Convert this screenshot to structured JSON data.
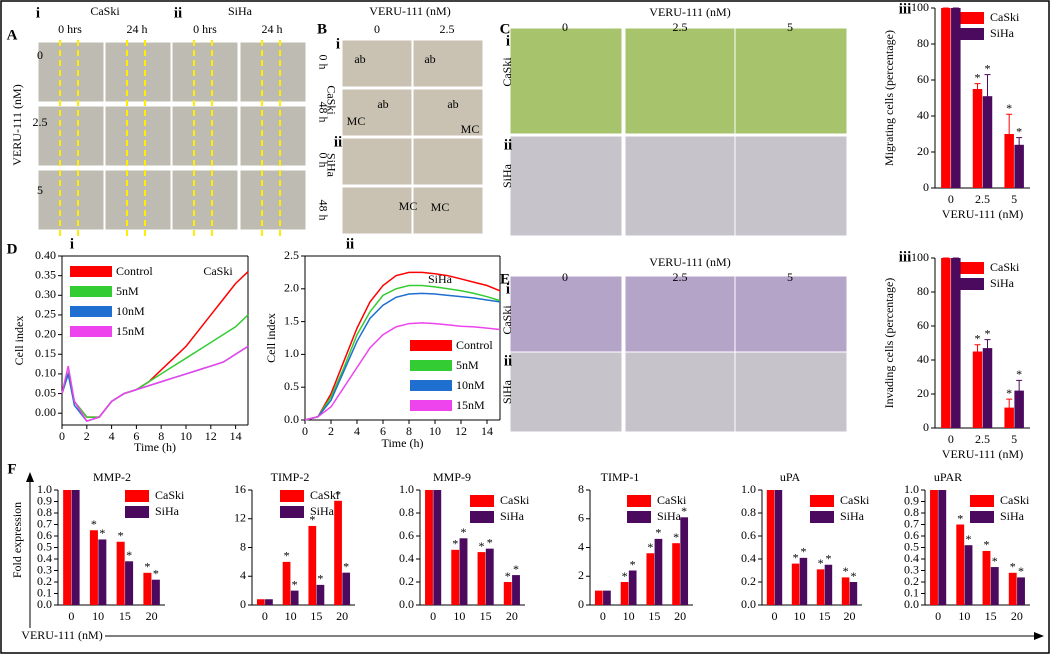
{
  "panel_A": {
    "label": "A",
    "sub": [
      "i",
      "ii"
    ],
    "lines": [
      "CaSki",
      "SiHa"
    ],
    "times": [
      "0 hrs",
      "24 h",
      "0 hrs",
      "24 h"
    ],
    "axis": "VERU-111  (nM)",
    "doses": [
      "0",
      "2.5",
      "5"
    ]
  },
  "panel_B": {
    "label": "B",
    "header": "VERU-111 (nM)",
    "doses": [
      "0",
      "2.5"
    ],
    "sub": [
      "i",
      "ii"
    ],
    "lines": [
      "CaSki",
      "SiHa"
    ],
    "times": [
      "0 h",
      "48 h",
      "0 h",
      "48 h"
    ],
    "marks": [
      "ab",
      "ab",
      "ab",
      "ab",
      "MC",
      "MC",
      "MC",
      "MC"
    ]
  },
  "panel_C": {
    "label": "C",
    "header": "VERU-111  (nM)",
    "doses": [
      "0",
      "2.5",
      "5"
    ],
    "sub": [
      "i",
      "ii"
    ],
    "lines": [
      "CaSki",
      "SiHa"
    ]
  },
  "panel_D": {
    "label": "D"
  },
  "panel_E": {
    "label": "E",
    "header": "VERU-111  (nM)",
    "doses": [
      "0",
      "2.5",
      "5"
    ],
    "sub": [
      "i",
      "ii"
    ],
    "lines": [
      "CaSki",
      "SiHa"
    ]
  },
  "panel_F": {
    "label": "F",
    "axis": "VERU-111  (nM)",
    "ylabel": "Fold expression"
  },
  "chart_data": [
    {
      "type": "bar",
      "panel": "iii",
      "ylabel": "Migrating cells (percentage)",
      "xlabel": "VERU-111  (nM)",
      "categories": [
        "0",
        "2.5",
        "5"
      ],
      "ylim": [
        0,
        100
      ],
      "yticks": [
        0,
        20,
        40,
        60,
        80,
        100
      ],
      "legend": "upper right",
      "series": [
        {
          "name": "CaSki",
          "color": "#ff0000",
          "values": [
            100,
            55,
            30
          ],
          "errors": [
            0,
            3,
            11
          ],
          "markers": [
            null,
            "*",
            "*"
          ]
        },
        {
          "name": "SiHa",
          "color": "#4b0a5e",
          "values": [
            100,
            51,
            24
          ],
          "errors": [
            0,
            12,
            4
          ],
          "markers": [
            null,
            "*",
            "*"
          ]
        }
      ]
    },
    {
      "type": "bar",
      "panel": "iii",
      "ylabel": "Invading cells (percentage)",
      "xlabel": "VERU-111  (nM)",
      "categories": [
        "0",
        "2.5",
        "5"
      ],
      "ylim": [
        0,
        100
      ],
      "yticks": [
        0,
        20,
        40,
        60,
        80,
        100
      ],
      "legend": "upper right",
      "series": [
        {
          "name": "CaSki",
          "color": "#ff0000",
          "values": [
            100,
            45,
            12
          ],
          "errors": [
            0,
            4,
            5
          ],
          "markers": [
            null,
            "*",
            "*"
          ]
        },
        {
          "name": "SiHa",
          "color": "#4b0a5e",
          "values": [
            100,
            47,
            22
          ],
          "errors": [
            0,
            5,
            6
          ],
          "markers": [
            null,
            "*",
            "*"
          ]
        }
      ]
    },
    {
      "type": "line",
      "panel": "i",
      "title": "CaSki",
      "ylabel": "Cell index",
      "xlabel": "Time  (h)",
      "legend": "upper left",
      "x": [
        0,
        0.5,
        1,
        2,
        3,
        4,
        5,
        6,
        7,
        8,
        9,
        10,
        11,
        12,
        13,
        14,
        15
      ],
      "xlim": [
        0,
        15
      ],
      "xticks": [
        0,
        2,
        4,
        6,
        8,
        10,
        12,
        14
      ],
      "ylim": [
        -0.03,
        0.4
      ],
      "yticks": [
        {
          "value": 0,
          "label": "0.00"
        },
        0.05,
        {
          "value": 0.1,
          "label": "0.10"
        },
        0.15,
        {
          "value": 0.2,
          "label": "0.20"
        },
        0.25,
        {
          "value": 0.3,
          "label": "0.30"
        },
        0.35,
        {
          "value": 0.4,
          "label": "0.40"
        }
      ],
      "series": [
        {
          "name": "Control",
          "color": "#ff0000",
          "values": [
            0.05,
            0.1,
            0.03,
            -0.01,
            -0.01,
            0.03,
            0.05,
            0.06,
            0.08,
            0.11,
            0.14,
            0.17,
            0.21,
            0.25,
            0.29,
            0.33,
            0.36
          ]
        },
        {
          "name": "5nM",
          "color": "#33cc33",
          "values": [
            0.05,
            0.1,
            0.03,
            -0.01,
            -0.01,
            0.03,
            0.05,
            0.06,
            0.08,
            0.1,
            0.12,
            0.14,
            0.16,
            0.18,
            0.2,
            0.22,
            0.25
          ]
        },
        {
          "name": "10nM",
          "color": "#1e6fd0",
          "values": [
            0.05,
            0.1,
            0.02,
            -0.02,
            -0.01,
            0.03,
            0.05,
            0.06,
            0.07,
            0.08,
            0.09,
            0.1,
            0.11,
            0.12,
            0.13,
            0.15,
            0.17
          ]
        },
        {
          "name": "15nM",
          "color": "#ee44ee",
          "values": [
            0.05,
            0.12,
            0.03,
            -0.02,
            -0.01,
            0.03,
            0.05,
            0.06,
            0.07,
            0.08,
            0.09,
            0.1,
            0.11,
            0.12,
            0.13,
            0.15,
            0.17
          ]
        }
      ]
    },
    {
      "type": "line",
      "panel": "ii",
      "title": "SiHa",
      "ylabel": "Cell index",
      "xlabel": "Time  (h)",
      "legend": "lower right",
      "x": [
        0,
        1,
        2,
        3,
        4,
        5,
        6,
        7,
        8,
        9,
        10,
        11,
        12,
        13,
        14,
        15
      ],
      "xlim": [
        0,
        15
      ],
      "xticks": [
        0,
        2,
        4,
        6,
        8,
        10,
        12,
        14
      ],
      "ylim": [
        0,
        2.5
      ],
      "yticks": [
        {
          "value": 0,
          "label": "0.0"
        },
        0.5,
        {
          "value": 1,
          "label": "1.0"
        },
        1.5,
        {
          "value": 2,
          "label": "2.0"
        },
        2.5
      ],
      "series": [
        {
          "name": "Control",
          "color": "#ff0000",
          "values": [
            0,
            0.05,
            0.4,
            0.9,
            1.4,
            1.8,
            2.05,
            2.2,
            2.25,
            2.25,
            2.23,
            2.2,
            2.15,
            2.1,
            2.05,
            1.97
          ]
        },
        {
          "name": "5nM",
          "color": "#33cc33",
          "values": [
            0,
            0.05,
            0.35,
            0.8,
            1.3,
            1.65,
            1.9,
            2.0,
            2.05,
            2.05,
            2.03,
            2.0,
            1.97,
            1.93,
            1.88,
            1.82
          ]
        },
        {
          "name": "10nM",
          "color": "#1e6fd0",
          "values": [
            0,
            0.05,
            0.3,
            0.75,
            1.2,
            1.55,
            1.75,
            1.87,
            1.92,
            1.93,
            1.92,
            1.9,
            1.88,
            1.86,
            1.83,
            1.8
          ]
        },
        {
          "name": "15nM",
          "color": "#ee44ee",
          "values": [
            0,
            0.05,
            0.2,
            0.5,
            0.8,
            1.1,
            1.3,
            1.42,
            1.47,
            1.48,
            1.47,
            1.45,
            1.43,
            1.42,
            1.4,
            1.38
          ]
        }
      ]
    },
    {
      "type": "bar",
      "title": "MMP-2",
      "categories": [
        "0",
        "10",
        "15",
        "20"
      ],
      "ylim": [
        0,
        1
      ],
      "legend": "upper right",
      "yticks": [
        {
          "value": 0,
          "label": "0.0"
        },
        0.1,
        0.2,
        0.3,
        0.4,
        0.5,
        0.6,
        0.7,
        0.8,
        0.9,
        {
          "value": 1,
          "label": "1.0"
        }
      ],
      "series": [
        {
          "name": "CaSki",
          "color": "#ff0000",
          "values": [
            1,
            0.65,
            0.55,
            0.28
          ],
          "markers": [
            null,
            "*",
            "*",
            "*"
          ]
        },
        {
          "name": "SiHa",
          "color": "#4b0a5e",
          "values": [
            1,
            0.57,
            0.38,
            0.22
          ],
          "markers": [
            null,
            "*",
            "*",
            "*"
          ]
        }
      ]
    },
    {
      "type": "bar",
      "title": "TIMP-2",
      "categories": [
        "0",
        "10",
        "15",
        "20"
      ],
      "ylim": [
        0,
        16
      ],
      "yticks": [
        0,
        4,
        8,
        12,
        16
      ],
      "legend": "upper right",
      "series": [
        {
          "name": "CaSki",
          "color": "#ff0000",
          "values": [
            0.8,
            6,
            11,
            14.5
          ],
          "markers": [
            null,
            "*",
            "*",
            "*"
          ]
        },
        {
          "name": "SiHa",
          "color": "#4b0a5e",
          "values": [
            0.8,
            2,
            2.8,
            4.5
          ],
          "markers": [
            null,
            "*",
            "*",
            "*"
          ]
        }
      ]
    },
    {
      "type": "bar",
      "title": "MMP-9",
      "categories": [
        "0",
        "10",
        "15",
        "20"
      ],
      "ylim": [
        0,
        1
      ],
      "legend": "upper right",
      "yticks": [
        {
          "value": 0,
          "label": "0.0"
        },
        0.2,
        0.4,
        0.6,
        0.8,
        {
          "value": 1,
          "label": "1.0"
        }
      ],
      "series": [
        {
          "name": "CaSki",
          "color": "#ff0000",
          "values": [
            1,
            0.48,
            0.46,
            0.2
          ],
          "markers": [
            null,
            "*",
            "*",
            "*"
          ]
        },
        {
          "name": "SiHa",
          "color": "#4b0a5e",
          "values": [
            1,
            0.58,
            0.49,
            0.26
          ],
          "markers": [
            null,
            "*",
            "*",
            "*"
          ]
        }
      ]
    },
    {
      "type": "bar",
      "title": "TIMP-1",
      "categories": [
        "0",
        "10",
        "15",
        "20"
      ],
      "ylim": [
        0,
        8
      ],
      "yticks": [
        0,
        2,
        4,
        6,
        8
      ],
      "legend": "upper right",
      "series": [
        {
          "name": "CaSki",
          "color": "#ff0000",
          "values": [
            1,
            1.6,
            3.6,
            4.3
          ],
          "markers": [
            null,
            "*",
            "*",
            "*"
          ]
        },
        {
          "name": "SiHa",
          "color": "#4b0a5e",
          "values": [
            1,
            2.4,
            4.6,
            6.1
          ],
          "markers": [
            null,
            "*",
            "*",
            "*"
          ]
        }
      ]
    },
    {
      "type": "bar",
      "title": "uPA",
      "categories": [
        "0",
        "10",
        "15",
        "20"
      ],
      "ylim": [
        0,
        1
      ],
      "legend": "upper right",
      "yticks": [
        {
          "value": 0,
          "label": "0.0"
        },
        0.2,
        0.4,
        0.6,
        0.8,
        {
          "value": 1,
          "label": "1.0"
        }
      ],
      "series": [
        {
          "name": "CaSki",
          "color": "#ff0000",
          "values": [
            1,
            0.36,
            0.31,
            0.24
          ],
          "markers": [
            null,
            "*",
            "*",
            "*"
          ]
        },
        {
          "name": "SiHa",
          "color": "#4b0a5e",
          "values": [
            1,
            0.41,
            0.35,
            0.2
          ],
          "markers": [
            null,
            "*",
            "*",
            "*"
          ]
        }
      ]
    },
    {
      "type": "bar",
      "title": "uPAR",
      "categories": [
        "0",
        "10",
        "15",
        "20"
      ],
      "ylim": [
        0,
        1
      ],
      "legend": "upper right",
      "yticks": [
        {
          "value": 0,
          "label": "0.0"
        },
        0.1,
        0.2,
        0.3,
        0.4,
        0.5,
        0.6,
        0.7,
        0.8,
        0.9,
        {
          "value": 1,
          "label": "1.0"
        }
      ],
      "series": [
        {
          "name": "CaSki",
          "color": "#ff0000",
          "values": [
            1,
            0.7,
            0.47,
            0.28
          ],
          "markers": [
            null,
            "*",
            "*",
            "*"
          ]
        },
        {
          "name": "SiHa",
          "color": "#4b0a5e",
          "values": [
            1,
            0.52,
            0.33,
            0.24
          ],
          "markers": [
            null,
            "*",
            "*",
            "*"
          ]
        }
      ]
    }
  ]
}
